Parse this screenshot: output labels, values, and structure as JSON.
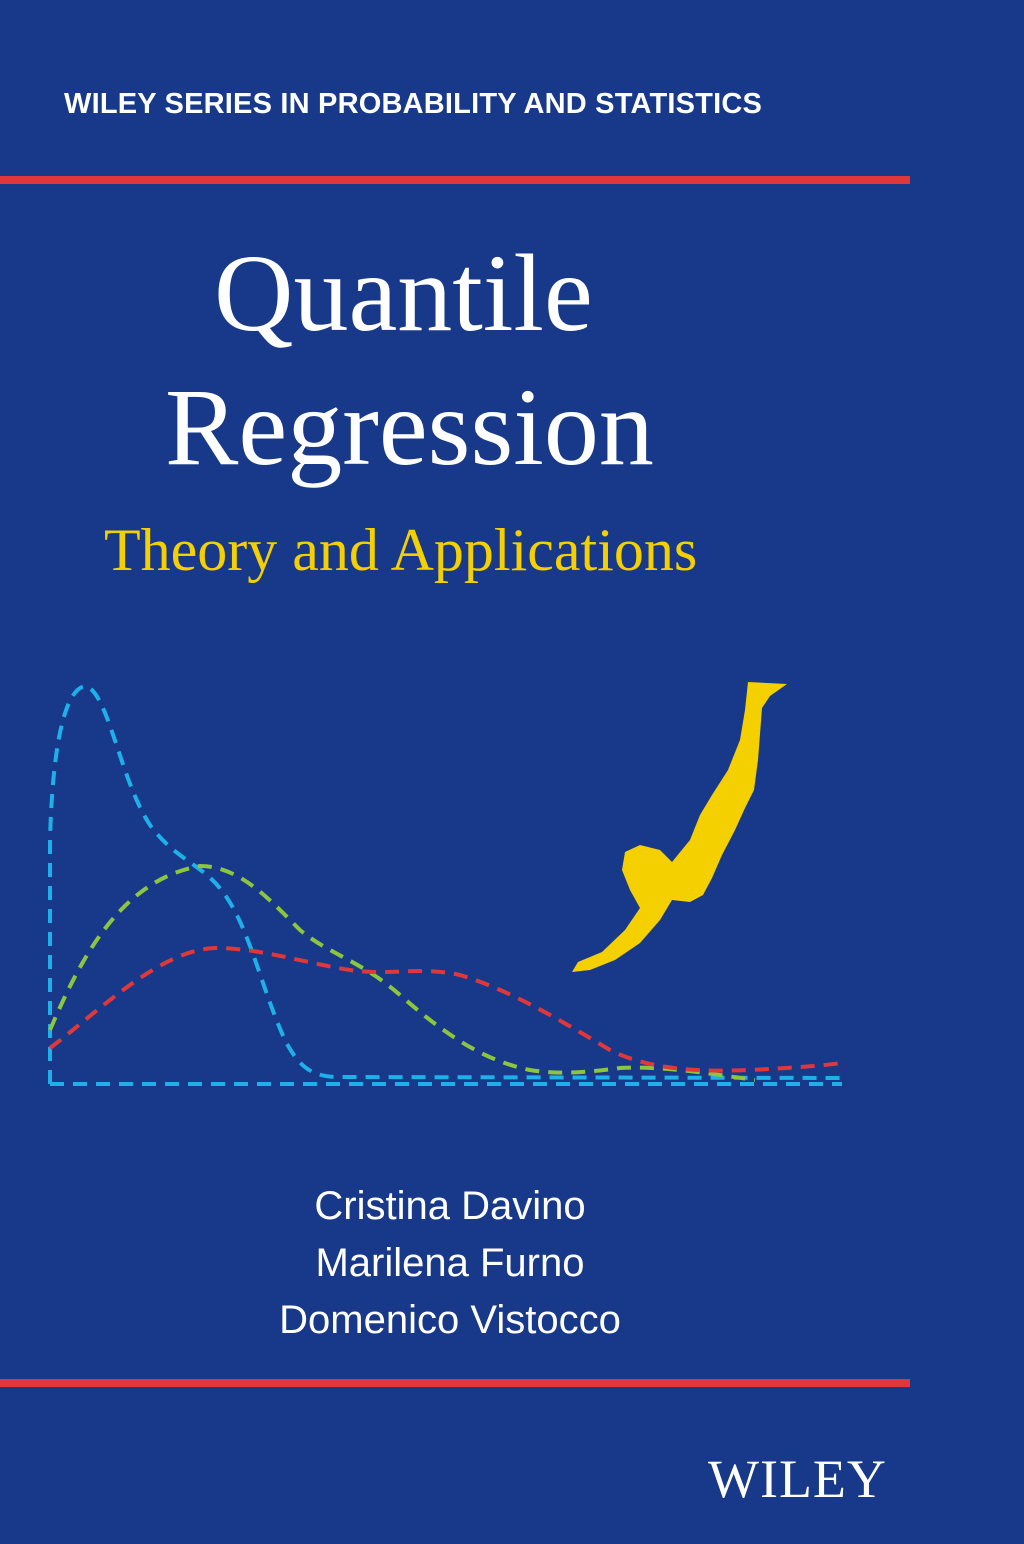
{
  "cover": {
    "series": "WILEY SERIES IN PROBABILITY AND STATISTICS",
    "title_line1": "Quantile",
    "title_line2": "Regression",
    "subtitle": "Theory and Applications",
    "authors": [
      "Cristina Davino",
      "Marilena Furno",
      "Domenico Vistocco"
    ],
    "publisher_logo": "WILEY",
    "illustration": "diver-silhouette-over-density-curves"
  },
  "colors": {
    "background": "#18398a",
    "rule": "#e0383a",
    "subtitle": "#f5d000",
    "curve_blue": "#1fb0ea",
    "curve_green": "#8cc63f",
    "curve_red": "#e0383a",
    "diver": "#f5d000"
  }
}
